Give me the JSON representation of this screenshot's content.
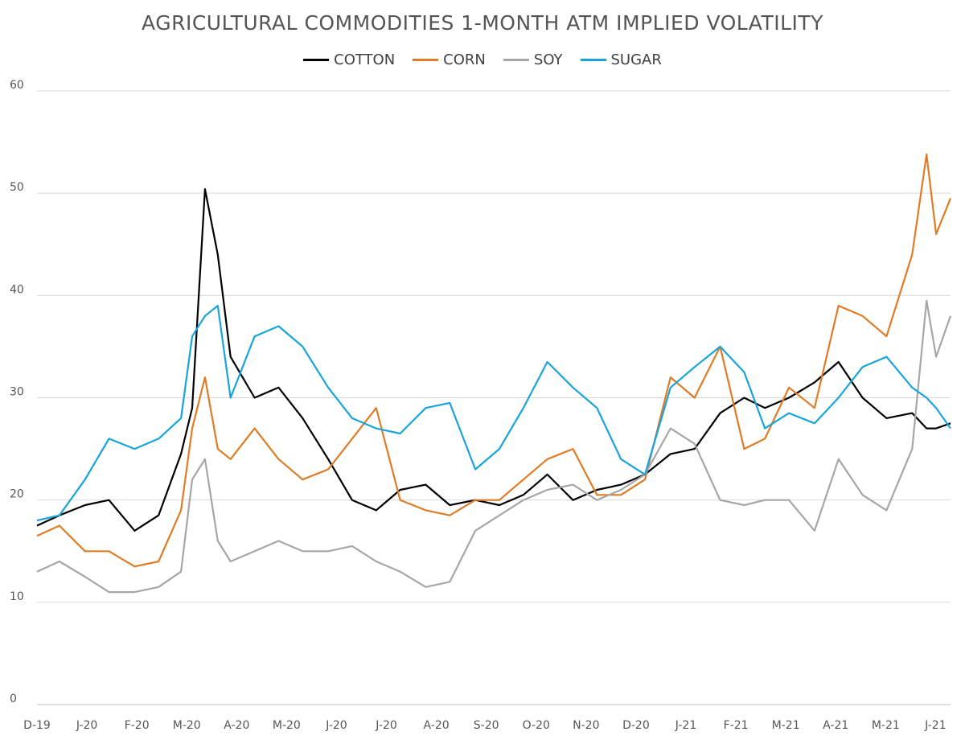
{
  "chart_data": {
    "type": "line",
    "title": "AGRICULTURAL COMMODITIES 1-MONTH ATM IMPLIED VOLATILITY",
    "xlabel": "",
    "ylabel": "",
    "ylim": [
      0,
      60
    ],
    "y_ticks": [
      0,
      10,
      20,
      30,
      40,
      50,
      60
    ],
    "grid": "horizontal",
    "legend_position": "top-center",
    "x_tick_labels": [
      "D-19",
      "J-20",
      "F-20",
      "M-20",
      "A-20",
      "M-20",
      "J-20",
      "J-20",
      "A-20",
      "S-20",
      "O-20",
      "N-20",
      "D-20",
      "J-21",
      "F-21",
      "M-21",
      "A-21",
      "M-21",
      "J-21"
    ],
    "x": [
      "2019-12-02",
      "2019-12-16",
      "2020-01-01",
      "2020-01-16",
      "2020-02-01",
      "2020-02-16",
      "2020-03-01",
      "2020-03-08",
      "2020-03-16",
      "2020-03-24",
      "2020-04-01",
      "2020-04-16",
      "2020-05-01",
      "2020-05-16",
      "2020-06-01",
      "2020-06-16",
      "2020-07-01",
      "2020-07-16",
      "2020-08-01",
      "2020-08-16",
      "2020-09-01",
      "2020-09-16",
      "2020-10-01",
      "2020-10-16",
      "2020-11-01",
      "2020-11-16",
      "2020-12-01",
      "2020-12-16",
      "2021-01-01",
      "2021-01-16",
      "2021-02-01",
      "2021-02-16",
      "2021-03-01",
      "2021-03-16",
      "2021-04-01",
      "2021-04-16",
      "2021-05-01",
      "2021-05-16",
      "2021-06-01",
      "2021-06-10",
      "2021-06-16",
      "2021-06-25"
    ],
    "series": [
      {
        "name": "COTTON",
        "color": "#000000",
        "values": [
          17.5,
          18.5,
          19.5,
          20.0,
          17.0,
          18.5,
          24.5,
          29.0,
          50.4,
          44.0,
          34.0,
          30.0,
          31.0,
          28.0,
          24.0,
          20.0,
          19.0,
          21.0,
          21.5,
          19.5,
          20.0,
          19.5,
          20.5,
          22.5,
          20.0,
          21.0,
          21.5,
          22.5,
          24.5,
          25.0,
          28.5,
          30.0,
          29.0,
          30.0,
          31.5,
          33.5,
          30.0,
          28.0,
          28.5,
          27.0,
          27.0,
          27.5
        ]
      },
      {
        "name": "CORN",
        "color": "#e07b25",
        "values": [
          16.5,
          17.5,
          15.0,
          15.0,
          13.5,
          14.0,
          19.0,
          27.0,
          32.0,
          25.0,
          24.0,
          27.0,
          24.0,
          22.0,
          23.0,
          26.0,
          29.0,
          20.0,
          19.0,
          18.5,
          20.0,
          20.0,
          22.0,
          24.0,
          25.0,
          20.5,
          20.5,
          22.0,
          32.0,
          30.0,
          35.0,
          25.0,
          26.0,
          31.0,
          29.0,
          39.0,
          38.0,
          36.0,
          44.0,
          53.8,
          46.0,
          49.5
        ]
      },
      {
        "name": "SOY",
        "color": "#a6a6a6",
        "values": [
          13.0,
          14.0,
          12.5,
          11.0,
          11.0,
          11.5,
          13.0,
          22.0,
          24.0,
          16.0,
          14.0,
          15.0,
          16.0,
          15.0,
          15.0,
          15.5,
          14.0,
          13.0,
          11.5,
          12.0,
          17.0,
          18.5,
          20.0,
          21.0,
          21.5,
          20.0,
          21.0,
          22.5,
          27.0,
          25.5,
          20.0,
          19.5,
          20.0,
          20.0,
          17.0,
          24.0,
          20.5,
          19.0,
          25.0,
          39.5,
          34.0,
          38.0
        ]
      },
      {
        "name": "SUGAR",
        "color": "#17a4dd",
        "values": [
          18.0,
          18.5,
          22.0,
          26.0,
          25.0,
          26.0,
          28.0,
          36.0,
          38.0,
          39.0,
          30.0,
          36.0,
          37.0,
          35.0,
          31.0,
          28.0,
          27.0,
          26.5,
          29.0,
          29.5,
          23.0,
          25.0,
          29.0,
          33.5,
          31.0,
          29.0,
          24.0,
          22.5,
          31.0,
          33.0,
          35.0,
          32.5,
          27.0,
          28.5,
          27.5,
          30.0,
          33.0,
          34.0,
          31.0,
          30.0,
          29.0,
          27.0
        ]
      }
    ]
  }
}
